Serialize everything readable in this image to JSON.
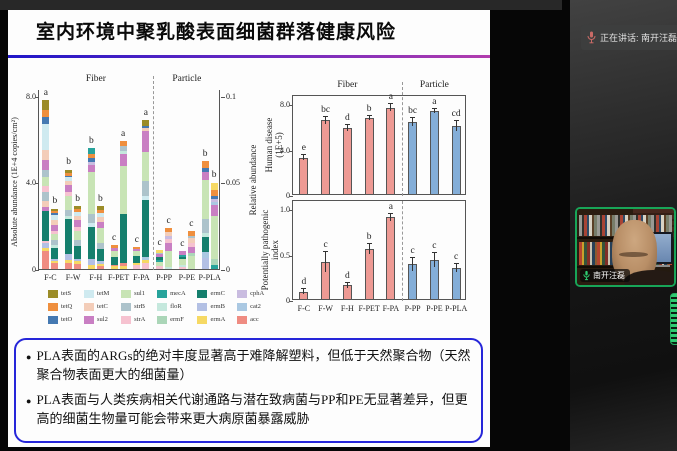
{
  "slide": {
    "title": "室内环境中聚乳酸表面细菌群落健康风险",
    "bullets": [
      "PLA表面的ARGs的绝对丰度显著高于难降解塑料，但低于天然聚合物（天然聚合物表面更大的细菌量）",
      "PLA表面与人类疾病相关代谢通路与潜在致病菌与PP和PE无显著差异，但更高的细菌生物量可能会带来更大病原菌暴露威胁"
    ]
  },
  "meeting": {
    "speaking_label": "正在讲话: 南开汪磊",
    "participant_name": "南开汪磊",
    "active_speaker_border": "#18a558",
    "mic_on_color": "#2ecc71"
  },
  "chart_data": [
    {
      "type": "bar",
      "subtype": "paired-stacked",
      "group_labels": [
        "Fiber",
        "Particle"
      ],
      "split_index": 5,
      "categories": [
        "F-C",
        "F-W",
        "F-H",
        "F-PET",
        "F-PA",
        "P-PP",
        "P-PE",
        "P-PLA"
      ],
      "ylabel_left": "Absolute abundance (1E+4 copies/cm²)",
      "ylim_left": [
        0,
        8
      ],
      "yticks_left": [
        {
          "v": 0,
          "label": "0"
        },
        {
          "v": 4,
          "label": "4.0"
        },
        {
          "v": 8,
          "label": "8.0"
        }
      ],
      "ylabel_right": "Relative abundance",
      "ylim_right": [
        0,
        0.1
      ],
      "yticks_right": [
        {
          "v": 0,
          "label": "0"
        },
        {
          "v": 4,
          "label": "0.05"
        },
        {
          "v": 8,
          "label": "0.1"
        }
      ],
      "legend": [
        {
          "key": "tetS",
          "color": "#9b8c28"
        },
        {
          "key": "tetQ",
          "color": "#ef8f3e"
        },
        {
          "key": "tetO",
          "color": "#4579b2"
        },
        {
          "key": "tetM",
          "color": "#cfeaf0"
        },
        {
          "key": "tetC",
          "color": "#f3cdb9"
        },
        {
          "key": "sul2",
          "color": "#c97fc3"
        },
        {
          "key": "sul1",
          "color": "#c8e4b5"
        },
        {
          "key": "strB",
          "color": "#adc3cb"
        },
        {
          "key": "strA",
          "color": "#f6c2d0"
        },
        {
          "key": "mecA",
          "color": "#27a39b"
        },
        {
          "key": "floR",
          "color": "#c5e8dd"
        },
        {
          "key": "ermF",
          "color": "#abd6b8"
        },
        {
          "key": "ermC",
          "color": "#157f6d"
        },
        {
          "key": "ermB",
          "color": "#b3c0e4"
        },
        {
          "key": "ermA",
          "color": "#f6d964"
        },
        {
          "key": "cphA",
          "color": "#c9bce0"
        },
        {
          "key": "cat2",
          "color": "#aac8e2"
        },
        {
          "key": "acc",
          "color": "#ef8c82"
        }
      ],
      "series": [
        {
          "category": "F-C",
          "abs": {
            "letter": "a",
            "segments": [
              [
                "acc",
                0.85
              ],
              [
                "ermA",
                0.12
              ],
              [
                "ermB",
                0.22
              ],
              [
                "strA",
                0.12
              ],
              [
                "ermC",
                1.35
              ],
              [
                "sul2",
                0.22
              ],
              [
                "tetC",
                0.28
              ],
              [
                "strB",
                0.38
              ],
              [
                "strA",
                0.3
              ],
              [
                "sul1",
                0.42
              ],
              [
                "strB",
                0.3
              ],
              [
                "sul2",
                0.5
              ],
              [
                "tetC",
                0.45
              ],
              [
                "tetM",
                1.2
              ],
              [
                "tetO",
                0.3
              ],
              [
                "tetQ",
                0.34
              ],
              [
                "tetS",
                0.45
              ]
            ]
          },
          "rel": {
            "letter": "b",
            "segments": [
              [
                "acc",
                0.3
              ],
              [
                "ermA",
                0.08
              ],
              [
                "ermB",
                0.1
              ],
              [
                "ermC",
                0.5
              ],
              [
                "floR",
                0.12
              ],
              [
                "strB",
                0.22
              ],
              [
                "sul1",
                0.3
              ],
              [
                "strA",
                0.15
              ],
              [
                "sul2",
                0.28
              ],
              [
                "tetC",
                0.2
              ],
              [
                "tetM",
                0.25
              ],
              [
                "tetO",
                0.08
              ],
              [
                "tetQ",
                0.12
              ],
              [
                "tetS",
                0.1
              ]
            ]
          }
        },
        {
          "category": "F-W",
          "abs": {
            "letter": "b",
            "segments": [
              [
                "acc",
                0.3
              ],
              [
                "ermA",
                0.1
              ],
              [
                "ermB",
                0.28
              ],
              [
                "ermC",
                1.65
              ],
              [
                "floR",
                0.12
              ],
              [
                "strB",
                0.3
              ],
              [
                "sul1",
                0.62
              ],
              [
                "strA",
                0.2
              ],
              [
                "sul2",
                0.3
              ],
              [
                "tetC",
                0.22
              ],
              [
                "tetM",
                0.15
              ],
              [
                "tetO",
                0.06
              ],
              [
                "tetQ",
                0.12
              ],
              [
                "tetS",
                0.18
              ]
            ]
          },
          "rel": {
            "letter": "b",
            "segments": [
              [
                "acc",
                0.25
              ],
              [
                "ermA",
                0.1
              ],
              [
                "ermB",
                0.12
              ],
              [
                "ermC",
                0.6
              ],
              [
                "strB",
                0.25
              ],
              [
                "sul1",
                0.45
              ],
              [
                "strA",
                0.18
              ],
              [
                "sul2",
                0.3
              ],
              [
                "tetC",
                0.22
              ],
              [
                "tetM",
                0.18
              ],
              [
                "tetQ",
                0.12
              ],
              [
                "tetS",
                0.13
              ]
            ]
          }
        },
        {
          "category": "F-H",
          "abs": {
            "letter": "b",
            "segments": [
              [
                "ermA",
                0.18
              ],
              [
                "ermB",
                0.3
              ],
              [
                "ermC",
                1.45
              ],
              [
                "tetM",
                0.2
              ],
              [
                "strB",
                0.4
              ],
              [
                "sul1",
                1.95
              ],
              [
                "sul2",
                0.35
              ],
              [
                "cphA",
                0.12
              ],
              [
                "tetO",
                0.2
              ],
              [
                "tetQ",
                0.15
              ],
              [
                "mecA",
                0.3
              ]
            ]
          },
          "rel": {
            "letter": "b",
            "segments": [
              [
                "acc",
                0.12
              ],
              [
                "ermA",
                0.12
              ],
              [
                "ermB",
                0.15
              ],
              [
                "ermC",
                0.55
              ],
              [
                "strB",
                0.25
              ],
              [
                "sul1",
                0.7
              ],
              [
                "sul2",
                0.3
              ],
              [
                "tetC",
                0.2
              ],
              [
                "tetM",
                0.18
              ],
              [
                "tetQ",
                0.15
              ],
              [
                "tetS",
                0.18
              ]
            ]
          }
        },
        {
          "category": "F-PET",
          "abs": {
            "letter": "c",
            "segments": [
              [
                "ermA",
                0.12
              ],
              [
                "acc",
                0.08
              ],
              [
                "ermC",
                0.35
              ],
              [
                "sul1",
                0.3
              ],
              [
                "sul2",
                0.12
              ],
              [
                "tetQ",
                0.13
              ]
            ]
          },
          "rel": {
            "letter": "a",
            "segments": [
              [
                "ermA",
                0.15
              ],
              [
                "acc",
                0.15
              ],
              [
                "ermC",
                2.25
              ],
              [
                "sul1",
                2.2
              ],
              [
                "sul2",
                0.55
              ],
              [
                "floR",
                0.15
              ],
              [
                "strB",
                0.25
              ],
              [
                "tetQ",
                0.2
              ]
            ]
          }
        },
        {
          "category": "F-PA",
          "abs": {
            "letter": "c",
            "segments": [
              [
                "strA",
                0.18
              ],
              [
                "ermA",
                0.12
              ],
              [
                "ermC",
                0.3
              ],
              [
                "sul1",
                0.22
              ],
              [
                "sul2",
                0.1
              ],
              [
                "tetQ",
                0.08
              ]
            ]
          },
          "rel": {
            "letter": "a",
            "segments": [
              [
                "strA",
                0.3
              ],
              [
                "ermA",
                0.12
              ],
              [
                "cat2",
                0.15
              ],
              [
                "ermC",
                2.6
              ],
              [
                "tetM",
                0.2
              ],
              [
                "strB",
                0.7
              ],
              [
                "sul1",
                1.35
              ],
              [
                "sul2",
                0.95
              ],
              [
                "tetC",
                0.15
              ],
              [
                "tetO",
                0.08
              ],
              [
                "tetS",
                0.3
              ]
            ]
          }
        },
        {
          "category": "P-PP",
          "abs": {
            "letter": "c",
            "segments": [
              [
                "strA",
                0.12
              ],
              [
                "sul1",
                0.2
              ],
              [
                "mecA",
                0.12
              ],
              [
                "ermC",
                0.1
              ],
              [
                "sul2",
                0.14
              ],
              [
                "strB",
                0.08
              ],
              [
                "ermA",
                0.14
              ]
            ]
          },
          "rel": {
            "letter": "c",
            "segments": [
              [
                "floR",
                0.1
              ],
              [
                "sul1",
                0.75
              ],
              [
                "sul2",
                0.35
              ],
              [
                "strA",
                0.2
              ],
              [
                "cphA",
                0.12
              ],
              [
                "tetC",
                0.18
              ],
              [
                "tetQ",
                0.2
              ]
            ]
          }
        },
        {
          "category": "P-PE",
          "abs": {
            "letter": "c",
            "segments": [
              [
                "strA",
                0.1
              ],
              [
                "floR",
                0.1
              ],
              [
                "sul1",
                0.25
              ],
              [
                "ermC",
                0.12
              ],
              [
                "mecA",
                0.08
              ],
              [
                "sul2",
                0.2
              ]
            ]
          },
          "rel": {
            "letter": "c",
            "segments": [
              [
                "sul1",
                0.6
              ],
              [
                "ermF",
                0.12
              ],
              [
                "sul2",
                0.3
              ],
              [
                "strA",
                0.18
              ],
              [
                "tetC",
                0.25
              ],
              [
                "strB",
                0.1
              ],
              [
                "tetQ",
                0.2
              ]
            ]
          }
        },
        {
          "category": "P-PLA",
          "abs": {
            "letter": "b",
            "segments": [
              [
                "ermB",
                0.5
              ],
              [
                "cat2",
                0.3
              ],
              [
                "ermC",
                0.7
              ],
              [
                "floR",
                0.15
              ],
              [
                "strB",
                0.65
              ],
              [
                "sul1",
                1.8
              ],
              [
                "sul2",
                0.4
              ],
              [
                "tetO",
                0.15
              ],
              [
                "tetQ",
                0.35
              ]
            ]
          },
          "rel": {
            "letter": "b",
            "segments": [
              [
                "mecA",
                0.2
              ],
              [
                "ermF",
                0.25
              ],
              [
                "sul1",
                2.0
              ],
              [
                "sul2",
                0.5
              ],
              [
                "cat2",
                0.15
              ],
              [
                "cphA",
                0.15
              ],
              [
                "tetO",
                0.15
              ],
              [
                "tetQ",
                0.25
              ],
              [
                "ermA",
                0.35
              ]
            ]
          }
        }
      ]
    },
    {
      "type": "bar",
      "title": "",
      "ylabel": "Human disease\n(1E+5)",
      "categories": [
        "F-C",
        "F-W",
        "F-H",
        "F-PET",
        "F-PA",
        "P-PP",
        "P-PE",
        "P-PLA"
      ],
      "values": [
        3.2,
        6.5,
        5.8,
        6.7,
        7.6,
        6.3,
        7.3,
        6.0
      ],
      "errors": [
        0.25,
        0.3,
        0.25,
        0.2,
        0.3,
        0.35,
        0.2,
        0.45
      ],
      "letters": [
        "e",
        "bc",
        "d",
        "b",
        "a",
        "bc",
        "a",
        "cd"
      ],
      "ylim": [
        0,
        8
      ],
      "yticks": [
        {
          "v": 0,
          "label": "0"
        },
        {
          "v": 4,
          "label": "4.0"
        },
        {
          "v": 8,
          "label": "8.0"
        }
      ],
      "group_labels": [
        "Fiber",
        "Particle"
      ],
      "split_index": 5,
      "colors": {
        "fiber": "#ee9a94",
        "particle": "#84aed8"
      }
    },
    {
      "type": "bar",
      "title": "",
      "ylabel": "Potentially pathogenic\nindex",
      "categories": [
        "F-C",
        "F-W",
        "F-H",
        "F-PET",
        "F-PA",
        "P-PP",
        "P-PE",
        "P-PLA"
      ],
      "values": [
        0.08,
        0.41,
        0.15,
        0.55,
        0.9,
        0.38,
        0.43,
        0.34
      ],
      "errors": [
        0.03,
        0.11,
        0.03,
        0.05,
        0.04,
        0.07,
        0.08,
        0.04
      ],
      "letters": [
        "d",
        "c",
        "d",
        "b",
        "a",
        "c",
        "c",
        "c"
      ],
      "ylim": [
        0,
        1
      ],
      "yticks": [
        {
          "v": 0,
          "label": "0"
        },
        {
          "v": 0.5,
          "label": "0.5"
        },
        {
          "v": 1,
          "label": "1.0"
        }
      ],
      "group_labels": [
        "Fiber",
        "Particle"
      ],
      "split_index": 5,
      "colors": {
        "fiber": "#ee9a94",
        "particle": "#84aed8"
      }
    }
  ]
}
